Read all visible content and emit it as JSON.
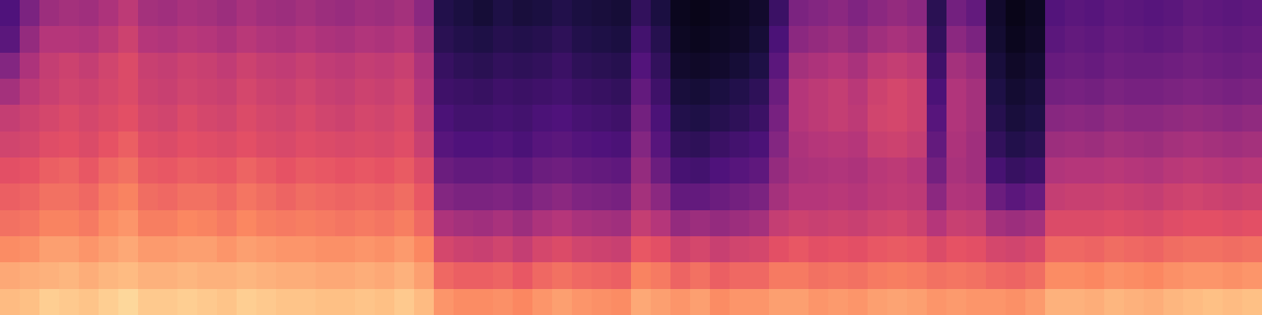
{
  "chart_data": {
    "type": "heatmap",
    "color": "magma",
    "tick_labels": false,
    "zlim": [
      0,
      100
    ],
    "values": [
      [
        25,
        28,
        38,
        46,
        54,
        57,
        62,
        66,
        70,
        76,
        82,
        86
      ],
      [
        36,
        42,
        48,
        52,
        56,
        58,
        63,
        67,
        71,
        77,
        83,
        87
      ],
      [
        44,
        50,
        54,
        55,
        58,
        61,
        66,
        70,
        74,
        80,
        84,
        90
      ],
      [
        46,
        50,
        56,
        57,
        60,
        62,
        67,
        70,
        74,
        80,
        85,
        89
      ],
      [
        45,
        49,
        54,
        56,
        58,
        60,
        64,
        68,
        72,
        78,
        83,
        88
      ],
      [
        48,
        52,
        57,
        58,
        60,
        63,
        68,
        72,
        76,
        80,
        85,
        90
      ],
      [
        52,
        56,
        60,
        60,
        62,
        66,
        70,
        74,
        78,
        82,
        86,
        92
      ],
      [
        46,
        50,
        55,
        56,
        58,
        61,
        65,
        69,
        73,
        79,
        84,
        89
      ],
      [
        45,
        49,
        54,
        55,
        57,
        60,
        64,
        68,
        73,
        79,
        84,
        89
      ],
      [
        47,
        51,
        56,
        57,
        60,
        62,
        66,
        70,
        75,
        80,
        85,
        90
      ],
      [
        46,
        50,
        55,
        56,
        58,
        61,
        65,
        70,
        74,
        80,
        84,
        89
      ],
      [
        44,
        48,
        53,
        55,
        57,
        60,
        64,
        68,
        72,
        78,
        84,
        88
      ],
      [
        47,
        51,
        56,
        58,
        60,
        62,
        67,
        71,
        75,
        80,
        85,
        90
      ],
      [
        45,
        49,
        54,
        56,
        58,
        60,
        65,
        69,
        73,
        79,
        84,
        89
      ],
      [
        44,
        48,
        53,
        55,
        57,
        59,
        63,
        67,
        72,
        78,
        83,
        88
      ],
      [
        46,
        50,
        55,
        57,
        59,
        61,
        65,
        69,
        73,
        78,
        83,
        88
      ],
      [
        44,
        48,
        53,
        55,
        57,
        60,
        64,
        68,
        72,
        77,
        82,
        87
      ],
      [
        43,
        47,
        52,
        54,
        56,
        59,
        63,
        67,
        71,
        77,
        82,
        87
      ],
      [
        45,
        49,
        54,
        56,
        58,
        60,
        64,
        68,
        72,
        78,
        83,
        88
      ],
      [
        44,
        48,
        53,
        55,
        57,
        59,
        63,
        67,
        71,
        77,
        82,
        87
      ],
      [
        46,
        50,
        55,
        57,
        59,
        61,
        65,
        69,
        73,
        79,
        84,
        89
      ],
      [
        40,
        44,
        48,
        50,
        52,
        55,
        60,
        64,
        68,
        75,
        80,
        86
      ],
      [
        14,
        16,
        19,
        21,
        24,
        27,
        32,
        38,
        48,
        58,
        68,
        78
      ],
      [
        12,
        14,
        17,
        20,
        22,
        25,
        30,
        36,
        46,
        56,
        66,
        76
      ],
      [
        10,
        13,
        16,
        19,
        22,
        25,
        30,
        36,
        45,
        55,
        66,
        76
      ],
      [
        13,
        15,
        18,
        21,
        23,
        26,
        31,
        37,
        47,
        57,
        67,
        77
      ],
      [
        11,
        14,
        17,
        20,
        22,
        24,
        29,
        35,
        44,
        54,
        64,
        75
      ],
      [
        12,
        15,
        18,
        21,
        24,
        27,
        32,
        38,
        48,
        58,
        68,
        78
      ],
      [
        14,
        17,
        20,
        22,
        25,
        28,
        33,
        40,
        50,
        60,
        70,
        80
      ],
      [
        12,
        14,
        17,
        20,
        23,
        26,
        31,
        37,
        47,
        57,
        68,
        78
      ],
      [
        11,
        13,
        16,
        19,
        22,
        25,
        30,
        36,
        46,
        56,
        67,
        77
      ],
      [
        10,
        12,
        15,
        18,
        21,
        24,
        29,
        35,
        45,
        55,
        66,
        76
      ],
      [
        18,
        22,
        26,
        30,
        34,
        38,
        42,
        46,
        54,
        64,
        74,
        82
      ],
      [
        12,
        15,
        18,
        21,
        24,
        27,
        32,
        40,
        50,
        62,
        72,
        80
      ],
      [
        5,
        6,
        8,
        11,
        14,
        18,
        23,
        30,
        42,
        56,
        67,
        78
      ],
      [
        4,
        5,
        7,
        10,
        13,
        17,
        22,
        30,
        44,
        58,
        70,
        80
      ],
      [
        5,
        6,
        8,
        12,
        15,
        20,
        25,
        32,
        42,
        55,
        66,
        76
      ],
      [
        6,
        7,
        10,
        14,
        17,
        22,
        27,
        34,
        44,
        57,
        68,
        78
      ],
      [
        8,
        10,
        13,
        17,
        20,
        24,
        29,
        36,
        46,
        58,
        68,
        78
      ],
      [
        20,
        24,
        28,
        32,
        35,
        38,
        42,
        46,
        54,
        62,
        72,
        80
      ],
      [
        36,
        40,
        46,
        50,
        50,
        48,
        47,
        50,
        56,
        64,
        72,
        80
      ],
      [
        38,
        42,
        48,
        52,
        52,
        50,
        48,
        50,
        55,
        62,
        70,
        78
      ],
      [
        40,
        44,
        50,
        54,
        54,
        51,
        49,
        51,
        56,
        63,
        71,
        79
      ],
      [
        37,
        41,
        47,
        51,
        52,
        50,
        48,
        50,
        55,
        62,
        70,
        78
      ],
      [
        40,
        45,
        52,
        56,
        57,
        55,
        51,
        52,
        57,
        64,
        72,
        80
      ],
      [
        42,
        47,
        54,
        58,
        58,
        56,
        52,
        53,
        58,
        65,
        73,
        81
      ],
      [
        40,
        45,
        52,
        56,
        56,
        54,
        50,
        52,
        56,
        64,
        72,
        80
      ],
      [
        16,
        18,
        21,
        24,
        27,
        30,
        34,
        40,
        50,
        60,
        70,
        78
      ],
      [
        34,
        40,
        46,
        49,
        49,
        48,
        47,
        49,
        55,
        63,
        71,
        79
      ],
      [
        30,
        36,
        43,
        46,
        46,
        45,
        45,
        48,
        54,
        62,
        70,
        78
      ],
      [
        8,
        9,
        11,
        13,
        15,
        18,
        23,
        32,
        46,
        58,
        68,
        78
      ],
      [
        4,
        5,
        7,
        9,
        11,
        14,
        19,
        28,
        44,
        57,
        67,
        77
      ],
      [
        6,
        7,
        9,
        11,
        13,
        16,
        21,
        31,
        46,
        59,
        69,
        79
      ],
      [
        26,
        28,
        31,
        34,
        39,
        44,
        49,
        54,
        60,
        68,
        76,
        84
      ],
      [
        28,
        30,
        32,
        35,
        40,
        45,
        50,
        55,
        60,
        68,
        76,
        84
      ],
      [
        27,
        29,
        31,
        34,
        39,
        44,
        50,
        55,
        60,
        67,
        75,
        83
      ],
      [
        29,
        31,
        33,
        36,
        41,
        46,
        51,
        56,
        61,
        69,
        77,
        85
      ],
      [
        28,
        30,
        32,
        35,
        40,
        45,
        50,
        55,
        60,
        68,
        76,
        84
      ],
      [
        27,
        29,
        32,
        35,
        40,
        44,
        49,
        54,
        59,
        67,
        75,
        83
      ],
      [
        28,
        30,
        33,
        36,
        41,
        46,
        51,
        56,
        61,
        69,
        77,
        85
      ],
      [
        30,
        32,
        34,
        37,
        42,
        47,
        52,
        57,
        62,
        70,
        78,
        86
      ],
      [
        29,
        31,
        33,
        36,
        41,
        46,
        51,
        56,
        62,
        70,
        78,
        87
      ],
      [
        28,
        30,
        32,
        35,
        40,
        45,
        50,
        55,
        61,
        69,
        77,
        86
      ],
      [
        29,
        31,
        33,
        36,
        41,
        46,
        51,
        56,
        62,
        70,
        78,
        87
      ]
    ]
  }
}
